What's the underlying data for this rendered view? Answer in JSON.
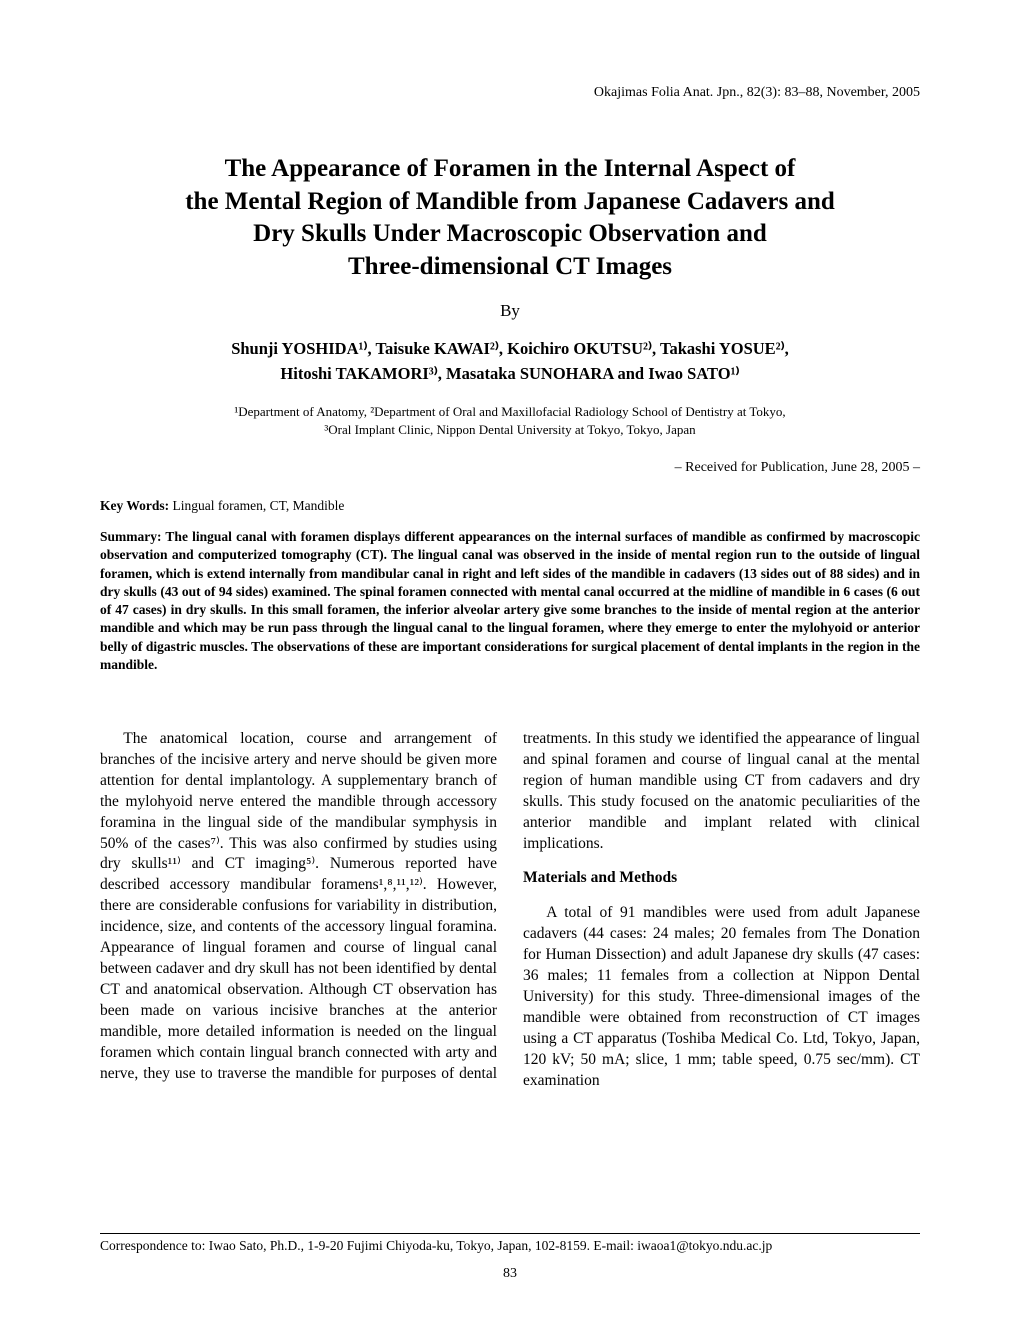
{
  "journal_ref": "Okajimas Folia Anat. Jpn., 82(3): 83–88, November, 2005",
  "title_line1": "The Appearance of Foramen in the Internal Aspect of",
  "title_line2": "the Mental Region of Mandible from Japanese Cadavers and",
  "title_line3": "Dry Skulls Under Macroscopic Observation and",
  "title_line4": "Three-dimensional CT Images",
  "by": "By",
  "authors_line1": "Shunji YOSHIDA¹⁾, Taisuke KAWAI²⁾, Koichiro OKUTSU²⁾, Takashi YOSUE²⁾,",
  "authors_line2": "Hitoshi TAKAMORI³⁾, Masataka SUNOHARA and Iwao SATO¹⁾",
  "affil_line1": "¹Department of Anatomy, ²Department of Oral and Maxillofacial Radiology School of Dentistry at Tokyo,",
  "affil_line2": "³Oral Implant Clinic, Nippon Dental University at Tokyo, Tokyo, Japan",
  "received": "– Received for Publication, June 28, 2005 –",
  "keywords_label": "Key Words:",
  "keywords": "   Lingual foramen, CT, Mandible",
  "summary": "Summary: The lingual canal with foramen displays different appearances on the internal surfaces of mandible as confirmed by macroscopic observation and computerized tomography (CT). The lingual canal was observed in the inside of mental region run to the outside of lingual foramen, which is extend internally from mandibular canal in right and left sides of the mandible in cadavers (13 sides out of 88 sides) and in dry skulls (43 out of 94 sides) examined. The spinal foramen connected with mental canal occurred at the midline of mandible in 6 cases (6 out of 47 cases) in dry skulls. In this small foramen, the inferior alveolar artery give some branches to the inside of mental region at the anterior mandible and which may be run pass through the lingual canal to the lingual foramen, where they emerge to enter the mylohyoid or anterior belly of digastric muscles. The observations of these are important considerations for surgical placement of dental implants in the region in the mandible.",
  "para1": "The anatomical location, course and arrangement of branches of the incisive artery and nerve should be given more attention for dental implantology. A supplementary branch of the mylohyoid nerve entered the mandible through accessory foramina in the lingual side of the mandibular symphysis in 50% of the cases⁷⁾. This was also confirmed by studies using dry skulls¹¹⁾ and CT imaging⁵⁾. Numerous reported have described accessory mandibular foramens¹,⁸,¹¹,¹²⁾. However, there are considerable confusions for variability in distribution, incidence, size, and contents of the accessory lingual foramina. Appearance of lingual foramen and course of lingual canal between cadaver and dry skull has not been identified by dental CT and anatomical observation. Although CT observation has been made on various incisive branches at the anterior mandible, more detailed information is needed on the lingual foramen which contain lingual branch connected with arty and nerve, they use to traverse the mandible for purposes of dental treatments. In this study we identified the appearance of lingual and spinal foramen and course of lingual canal at the mental region of human mandible using CT from cadavers and dry skulls. This study focused on the anatomic peculiarities of the anterior mandible and implant related with clinical implications.",
  "methods_head": "Materials and Methods",
  "para2": "A total of 91 mandibles were used from adult Japanese cadavers (44 cases: 24 males; 20 females from The Donation for Human Dissection) and adult Japanese dry skulls (47 cases: 36 males; 11 females from a collection at Nippon Dental University) for this study. Three-dimensional images of the mandible were obtained from reconstruction of CT images using a CT apparatus (Toshiba Medical Co. Ltd, Tokyo, Japan, 120 kV; 50 mA; slice, 1 mm; table speed, 0.75 sec/mm). CT examination",
  "correspondence": "Correspondence to: Iwao Sato, Ph.D., 1-9-20 Fujimi Chiyoda-ku, Tokyo, Japan, 102-8159. E-mail: iwaoa1@tokyo.ndu.ac.jp",
  "page_number": "83"
}
